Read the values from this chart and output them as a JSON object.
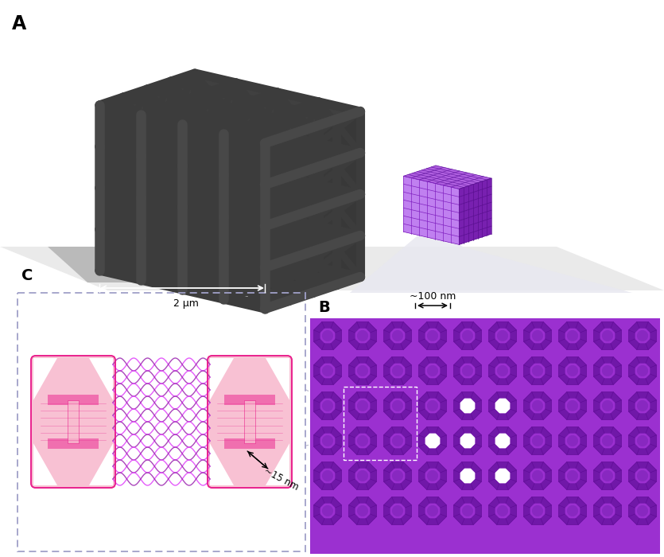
{
  "bg_color": "#ffffff",
  "panel_A_label": "A",
  "panel_B_label": "B",
  "panel_C_label": "C",
  "label_2um": "2 μm",
  "label_100nm": "~100 nm",
  "label_15nm": "~15 nm",
  "dark_lattice_color": "#3c3c3c",
  "dark_lattice_shadow": "#2a2a2a",
  "purple_color": "#9b30d0",
  "purple_light": "#b660e8",
  "purple_dark": "#6b1fa8",
  "purple_face_top": "#b060e0",
  "purple_face_front": "#c080f0",
  "purple_face_right": "#7820b0",
  "pink_fill": "#fce4ec",
  "pink_body": "#f8bbcf",
  "pink_edge": "#e91e8c",
  "pink_frame_fill": "#fdd5e2",
  "dna_color1": "#e040fb",
  "dna_color2": "#9c27b0",
  "dna_rung": "#7b1fa2",
  "gray_plane_light": "#e8e8e8",
  "gray_plane_dark": "#c0c0c0",
  "shadow_color": "#808080",
  "dashed_box_color": "#a0a0c8",
  "connector_color": "#c0c0d0",
  "zoom_bg": "#e8e8f0"
}
